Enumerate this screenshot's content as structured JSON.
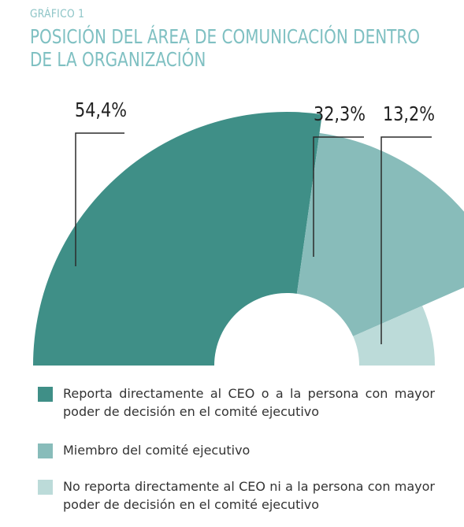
{
  "kicker": "GRÁFICO 1",
  "title": "POSICIÓN DEL ÁREA DE COMUNICACIÓN DENTRO DE LA ORGANIZACIÓN",
  "colors": {
    "dark": "#3f8f87",
    "medium": "#88bcba",
    "light": "#bcdbd9",
    "leader": "#2b2b2b"
  },
  "chart_data": {
    "type": "pie",
    "title": "POSICIÓN DEL ÁREA DE COMUNICACIÓN DENTRO DE LA ORGANIZACIÓN",
    "categories": [
      "Reporta directamente al CEO o a la persona con mayor poder de decisión en el comité ejecutivo",
      "Miembro del comité ejecutivo",
      "No reporta directamente al CEO ni a la persona con mayor poder de decisión en el comité ejecutivo"
    ],
    "values": [
      54.4,
      32.3,
      13.2
    ],
    "data_labels": [
      "54,4%",
      "32,3%",
      "13,2%"
    ],
    "legend_position": "bottom"
  }
}
